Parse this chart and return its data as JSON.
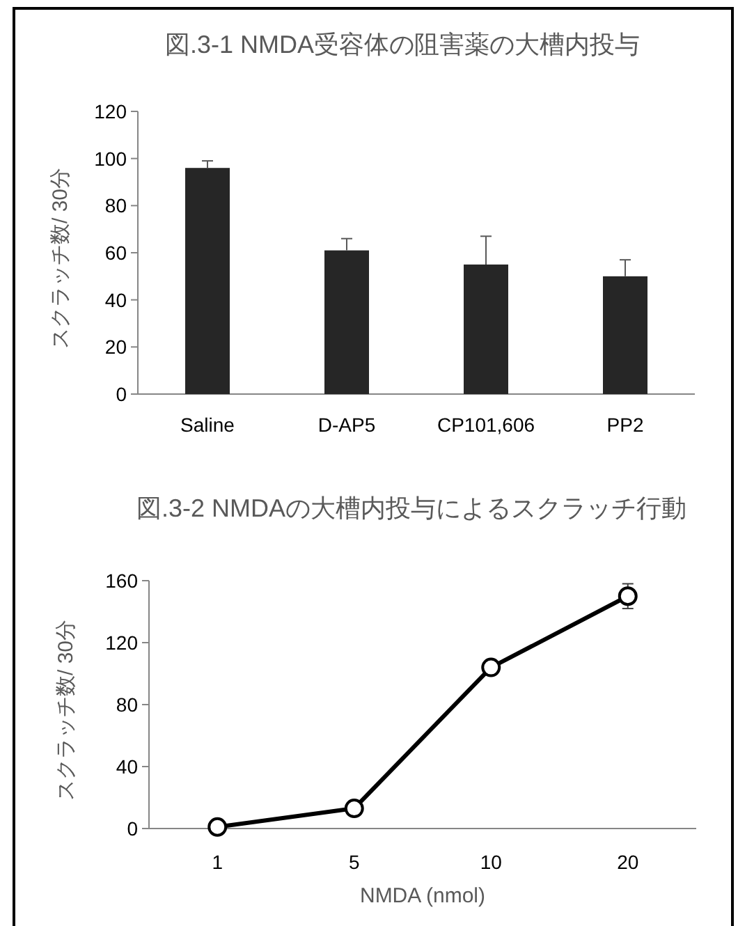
{
  "chart_data": [
    {
      "type": "bar",
      "title": "図.3-1 NMDA受容体の阻害薬の大槽内投与",
      "ylabel": "スクラッチ数/ 30分",
      "categories": [
        "Saline",
        "D-AP5",
        "CP101,606",
        "PP2"
      ],
      "series": [
        {
          "color": "#262626",
          "values": [
            96,
            61,
            55,
            50
          ],
          "errors": [
            [
              96,
              99
            ],
            [
              61,
              66
            ],
            [
              55,
              67
            ],
            [
              50,
              57
            ]
          ]
        }
      ],
      "ylim": [
        0,
        120
      ],
      "yticks": [
        0,
        20,
        40,
        60,
        80,
        100,
        120
      ],
      "grid": false
    },
    {
      "type": "line",
      "title": "図.3-2 NMDAの大槽内投与によるスクラッチ行動",
      "ylabel": "スクラッチ数/ 30分",
      "xlabel": "NMDA (nmol)",
      "categories": [
        "1",
        "5",
        "10",
        "20"
      ],
      "series": [
        {
          "color": "#000000",
          "values": [
            1,
            13,
            104,
            150
          ],
          "errors": [
            null,
            null,
            4,
            8
          ]
        }
      ],
      "ylim": [
        0,
        160
      ],
      "yticks": [
        0,
        40,
        80,
        120,
        160
      ],
      "marker": "circle",
      "line_style": "solid",
      "grid": false
    }
  ]
}
